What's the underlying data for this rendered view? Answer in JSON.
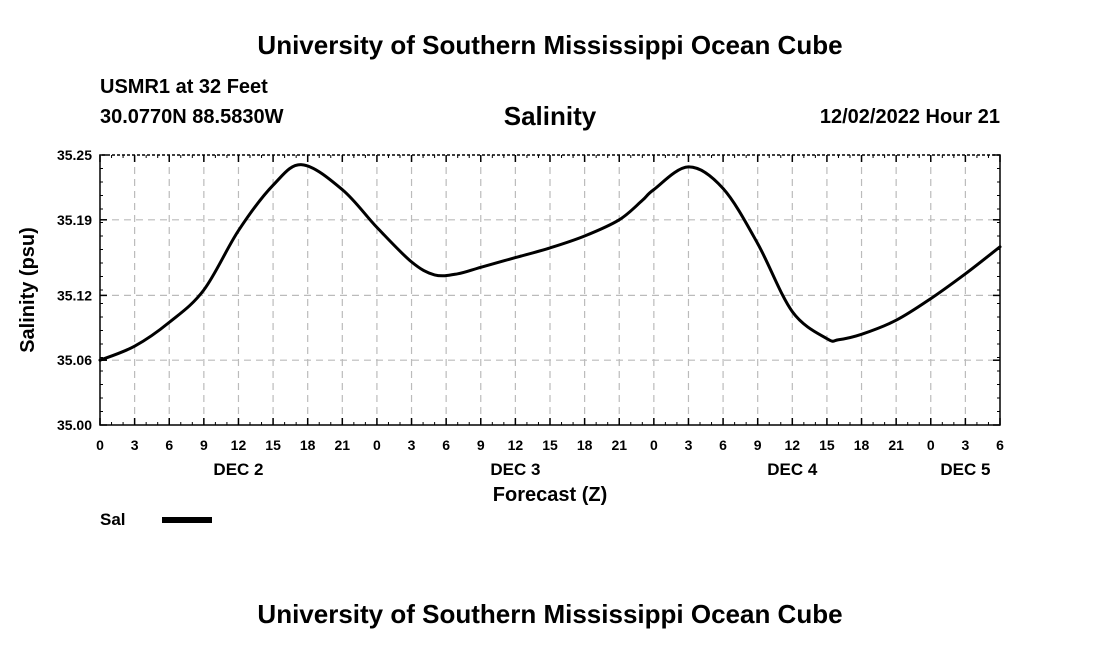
{
  "header": {
    "title": "University of Southern Mississippi Ocean Cube",
    "station": "USMR1 at 32 Feet",
    "coords": "30.0770N  88.5830W",
    "variable": "Salinity",
    "date": "12/02/2022 Hour 21"
  },
  "footer": {
    "title": "University of Southern Mississippi Ocean Cube"
  },
  "legend": {
    "label": "Sal"
  },
  "colors": {
    "line": "#000000",
    "grid": "#bbbbbb",
    "axis": "#000000"
  },
  "chart_data": {
    "type": "line",
    "title": "Salinity",
    "xlabel": "Forecast (Z)",
    "ylabel": "Salinity (psu)",
    "xlim": [
      0,
      78
    ],
    "ylim": [
      35.0,
      35.25
    ],
    "yticks": [
      35.0,
      35.06,
      35.12,
      35.19,
      35.25
    ],
    "ytick_labels": [
      "35.00",
      "35.06",
      "35.12",
      "35.19",
      "35.25"
    ],
    "xticks": [
      0,
      3,
      6,
      9,
      12,
      15,
      18,
      21,
      24,
      27,
      30,
      33,
      36,
      39,
      42,
      45,
      48,
      51,
      54,
      57,
      60,
      63,
      66,
      69,
      72,
      75,
      78
    ],
    "xtick_labels": [
      "0",
      "3",
      "6",
      "9",
      "12",
      "15",
      "18",
      "21",
      "0",
      "3",
      "6",
      "9",
      "12",
      "15",
      "18",
      "21",
      "0",
      "3",
      "6",
      "9",
      "12",
      "15",
      "18",
      "21",
      "0",
      "3",
      "6"
    ],
    "day_labels": [
      {
        "label": "DEC 2",
        "x": 12
      },
      {
        "label": "DEC 3",
        "x": 36
      },
      {
        "label": "DEC 4",
        "x": 60
      },
      {
        "label": "DEC 5",
        "x": 75
      }
    ],
    "grid": true,
    "series": [
      {
        "name": "Sal",
        "x": [
          0,
          3,
          6,
          9,
          12,
          15,
          17.5,
          21,
          24,
          27,
          29,
          31,
          33,
          36,
          39,
          42,
          45,
          47,
          48,
          51,
          54,
          57,
          60,
          63,
          64,
          66,
          69,
          72,
          75,
          78
        ],
        "values": [
          35.06,
          35.073,
          35.095,
          35.125,
          35.18,
          35.222,
          35.241,
          35.218,
          35.183,
          35.151,
          35.139,
          35.14,
          35.146,
          35.155,
          35.164,
          35.175,
          35.19,
          35.208,
          35.218,
          35.239,
          35.219,
          35.168,
          35.105,
          35.08,
          35.079,
          35.084,
          35.097,
          35.117,
          35.14,
          35.165
        ]
      }
    ]
  }
}
